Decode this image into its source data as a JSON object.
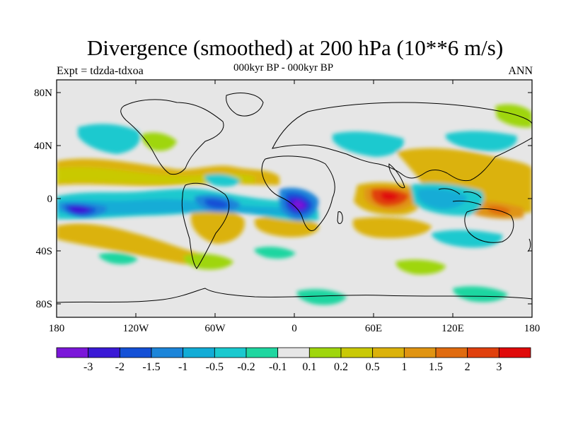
{
  "title": "Divergence (smoothed) at 200 hPa (10**6 m/s)",
  "experiment_label": "Expt = tdzda-tdxoa",
  "period_label": "000kyr BP - 000kyr BP",
  "season_label": "ANN",
  "lat_ticks": [
    "80N",
    "40N",
    "0",
    "40S",
    "80S"
  ],
  "lon_ticks": [
    "180",
    "120W",
    "60W",
    "0",
    "60E",
    "120E",
    "180"
  ],
  "colorbar": {
    "labels": [
      "-3",
      "-2",
      "-1.5",
      "-1",
      "-0.5",
      "-0.2",
      "-0.1",
      "0.1",
      "0.2",
      "0.5",
      "1",
      "1.5",
      "2",
      "3"
    ],
    "colors": [
      "#7b17d9",
      "#3a19d6",
      "#1450d6",
      "#1c85d9",
      "#12acd6",
      "#1ac9cf",
      "#1fd6a0",
      "#e6e6e6",
      "#9fd60d",
      "#c9c906",
      "#dbb20b",
      "#e09412",
      "#e06b0f",
      "#e0400d",
      "#e00a0a"
    ]
  },
  "chart_data": {
    "type": "heatmap",
    "title": "Divergence (smoothed) at 200 hPa (10**6 m/s)",
    "subtitle": "000kyr BP - 000kyr BP",
    "left_annotation": "Expt = tdzda-tdxoa",
    "right_annotation": "ANN",
    "x_range": [
      -180,
      180
    ],
    "y_range": [
      -90,
      90
    ],
    "contour_levels": [
      -3,
      -2,
      -1.5,
      -1,
      -0.5,
      -0.2,
      -0.1,
      0.1,
      0.2,
      0.5,
      1,
      1.5,
      2,
      3
    ],
    "notable_features": [
      {
        "feature": "divergence maximum (Indian Ocean)",
        "lon": 75,
        "lat": 0,
        "value": 2
      },
      {
        "feature": "convergence minimum (Gulf of Guinea)",
        "lon": 7,
        "lat": -5,
        "value": -3
      },
      {
        "feature": "convergence minimum (central Pacific)",
        "lon": -150,
        "lat": -10,
        "value": -3
      },
      {
        "feature": "divergence band (west Pacific)",
        "lon": 150,
        "lat": -10,
        "value": 1.5
      }
    ]
  }
}
